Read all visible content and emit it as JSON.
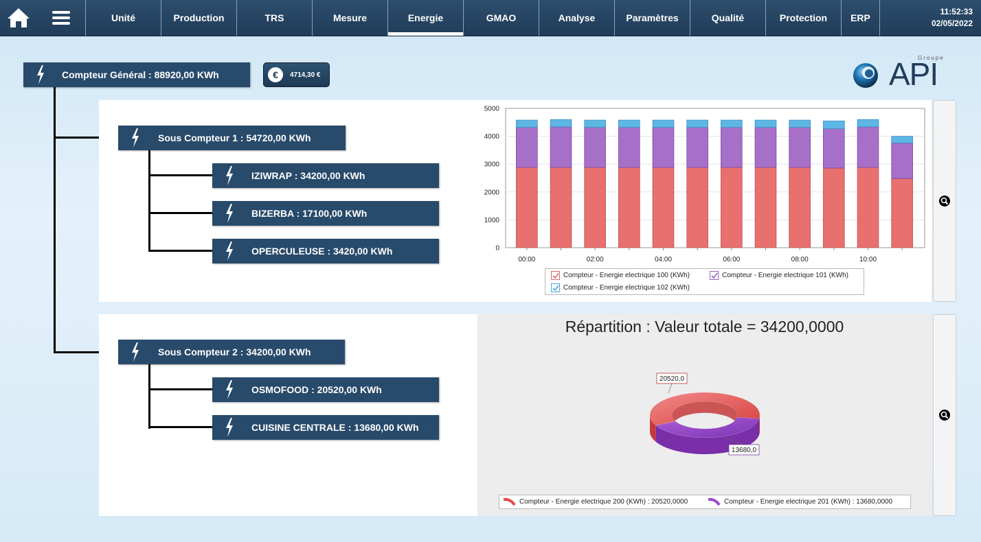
{
  "topbar": {
    "tabs": [
      {
        "label": "Unité",
        "active": false
      },
      {
        "label": "Production",
        "active": false
      },
      {
        "label": "TRS",
        "active": false
      },
      {
        "label": "Mesure",
        "active": false
      },
      {
        "label": "Energie",
        "active": true
      },
      {
        "label": "GMAO",
        "active": false
      },
      {
        "label": "Analyse",
        "active": false
      },
      {
        "label": "Paramètres",
        "active": false
      },
      {
        "label": "Qualité",
        "active": false
      },
      {
        "label": "Protection",
        "active": false
      },
      {
        "label": "ERP",
        "active": false
      }
    ],
    "time": "11:52:33",
    "date": "02/05/2022"
  },
  "meters": {
    "general": "Compteur Général : 88920,00 KWh",
    "cost": "4714,30 €",
    "sub1": "Sous Compteur 1 : 54720,00 KWh",
    "sub1_children": [
      "IZIWRAP : 34200,00 KWh",
      "BIZERBA : 17100,00 KWh",
      "OPERCULEUSE : 3420,00 KWh"
    ],
    "sub2": "Sous Compteur 2 : 34200,00 KWh",
    "sub2_children": [
      "OSMOFOOD : 20520,00 KWh",
      "CUISINE CENTRALE : 13680,00 KWh"
    ]
  },
  "logo": {
    "text": "API",
    "tagline": "Groupe"
  },
  "colors": {
    "series100": "#e8706f",
    "series101": "#a670c8",
    "series102": "#5eb6e4",
    "pie200": "#e24b4b",
    "pie201": "#9a4ac8",
    "meter_bg": "#284a6b"
  },
  "chart_data": [
    {
      "type": "bar",
      "stacked": true,
      "categories": [
        "00:00",
        "01:00",
        "02:00",
        "03:00",
        "04:00",
        "05:00",
        "06:00",
        "07:00",
        "08:00",
        "09:00",
        "10:00",
        "11:00"
      ],
      "x_tick_labels": [
        "00:00",
        "02:00",
        "04:00",
        "06:00",
        "08:00",
        "10:00"
      ],
      "series": [
        {
          "name": "Compteur - Energie electrique 100 (KWh)",
          "values": [
            2880,
            2880,
            2880,
            2880,
            2880,
            2880,
            2880,
            2880,
            2880,
            2860,
            2880,
            2480
          ]
        },
        {
          "name": "Compteur - Energie electrique 101 (KWh)",
          "values": [
            1440,
            1460,
            1440,
            1440,
            1440,
            1440,
            1440,
            1440,
            1440,
            1410,
            1460,
            1280
          ]
        },
        {
          "name": "Compteur - Energie electrique 102 (KWh)",
          "values": [
            260,
            260,
            260,
            260,
            260,
            260,
            260,
            260,
            260,
            280,
            260,
            240
          ]
        }
      ],
      "ylim": [
        0,
        5000
      ],
      "yticks": [
        0,
        1000,
        2000,
        3000,
        4000,
        5000
      ],
      "grid": true,
      "legend": "bottom"
    },
    {
      "type": "pie",
      "title": "Répartition : Valeur totale = 34200,0000",
      "slices": [
        {
          "name": "Compteur - Energie electrique 200 (KWh)",
          "value": 20520,
          "label": "20520,0"
        },
        {
          "name": "Compteur - Energie electrique 201 (KWh)",
          "value": 13680,
          "label": "13680,0"
        }
      ],
      "legend_items": [
        "Compteur - Energie electrique 200 (KWh) : 20520,0000",
        "Compteur - Energie electrique 201 (KWh) : 13680,0000"
      ],
      "legend": "bottom"
    }
  ]
}
